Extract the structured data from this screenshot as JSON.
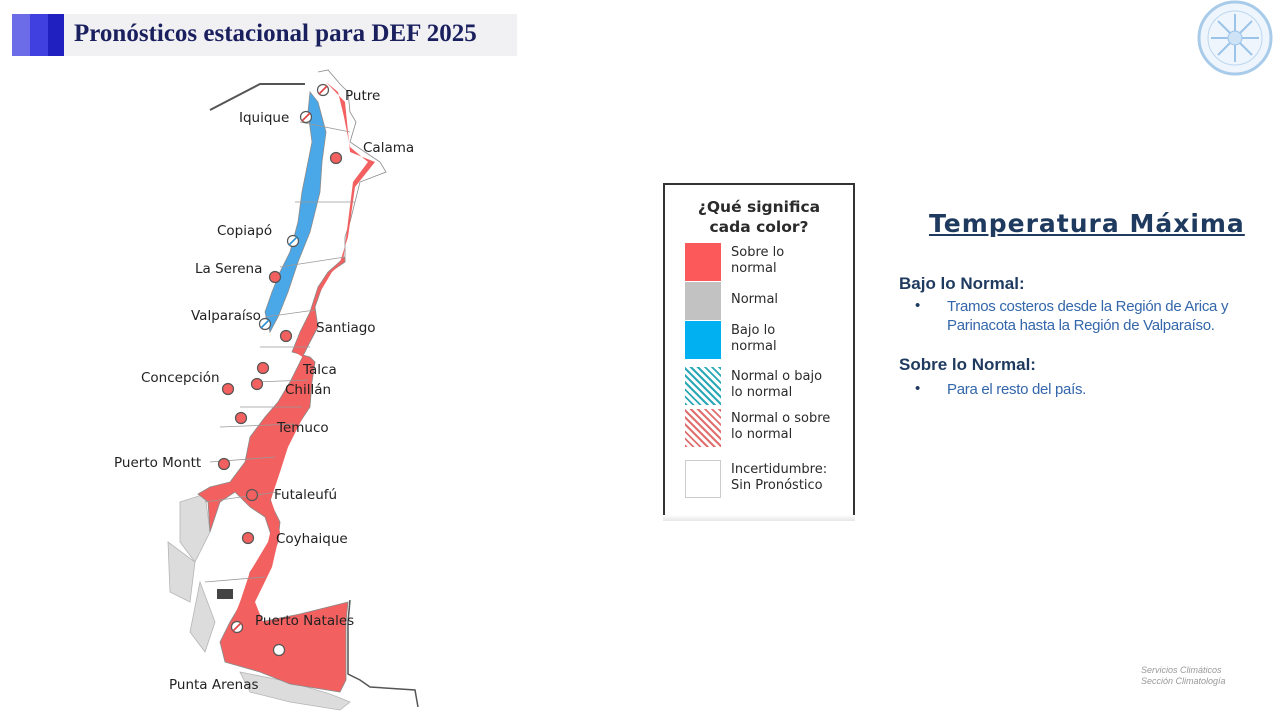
{
  "header": {
    "title": "Pronósticos estacional para DEF 2025",
    "colors": [
      "#6c6ce8",
      "#4040e0",
      "#2020c0"
    ]
  },
  "logo": {
    "icon": "meteochile-logo-icon"
  },
  "map": {
    "cities": [
      {
        "name": "Putre",
        "category": "diagonal"
      },
      {
        "name": "Iquique",
        "category": "diagonal"
      },
      {
        "name": "Calama",
        "category": "sobre"
      },
      {
        "name": "Copiapó",
        "category": "diagonal-blue"
      },
      {
        "name": "La Serena",
        "category": "sobre"
      },
      {
        "name": "Valparaíso",
        "category": "diagonal-blue"
      },
      {
        "name": "Santiago",
        "category": "sobre"
      },
      {
        "name": "Talca",
        "category": "sobre"
      },
      {
        "name": "Concepción",
        "category": "sobre"
      },
      {
        "name": "Chillán",
        "category": "sobre"
      },
      {
        "name": "Temuco",
        "category": "sobre"
      },
      {
        "name": "Puerto Montt",
        "category": "sobre"
      },
      {
        "name": "Futaleufú",
        "category": "sobre"
      },
      {
        "name": "Coyhaique",
        "category": "sobre"
      },
      {
        "name": "Puerto Natales",
        "category": "diagonal"
      },
      {
        "name": "Punta Arenas",
        "category": "sin-pronostico"
      }
    ],
    "colors": {
      "sobre": "#f26060",
      "bajo": "#4aa8e8",
      "border": "#888888"
    }
  },
  "legend": {
    "title_line1": "¿Qué significa",
    "title_line2": "cada color?",
    "items": [
      {
        "label_line1": "Sobre lo",
        "label_line2": "normal",
        "color": "#fc5a5a",
        "pattern": "solid"
      },
      {
        "label_line1": "Normal",
        "label_line2": "",
        "color": "#c2c2c2",
        "pattern": "solid"
      },
      {
        "label_line1": "Bajo lo",
        "label_line2": "normal",
        "color": "#00b0f0",
        "pattern": "solid"
      },
      {
        "label_line1": "Normal o bajo",
        "label_line2": "lo normal",
        "color": "#2aa8b8",
        "pattern": "hatch"
      },
      {
        "label_line1": "Normal o sobre",
        "label_line2": "lo normal",
        "color": "#e07070",
        "pattern": "hatch"
      },
      {
        "label_line1": "Incertidumbre:",
        "label_line2": "Sin Pronóstico",
        "color": "#ffffff",
        "pattern": "empty"
      }
    ]
  },
  "panel": {
    "heading": "Temperatura Máxima",
    "sections": [
      {
        "title": "Bajo lo Normal:",
        "bullets": [
          "Tramos costeros desde la Región de Arica y Parinacota hasta la Región de Valparaíso."
        ]
      },
      {
        "title": "Sobre lo Normal:",
        "bullets": [
          "Para el resto del país."
        ]
      }
    ]
  },
  "footer": {
    "line1": "Servicios Climáticos",
    "line2": "Sección Climatología"
  }
}
